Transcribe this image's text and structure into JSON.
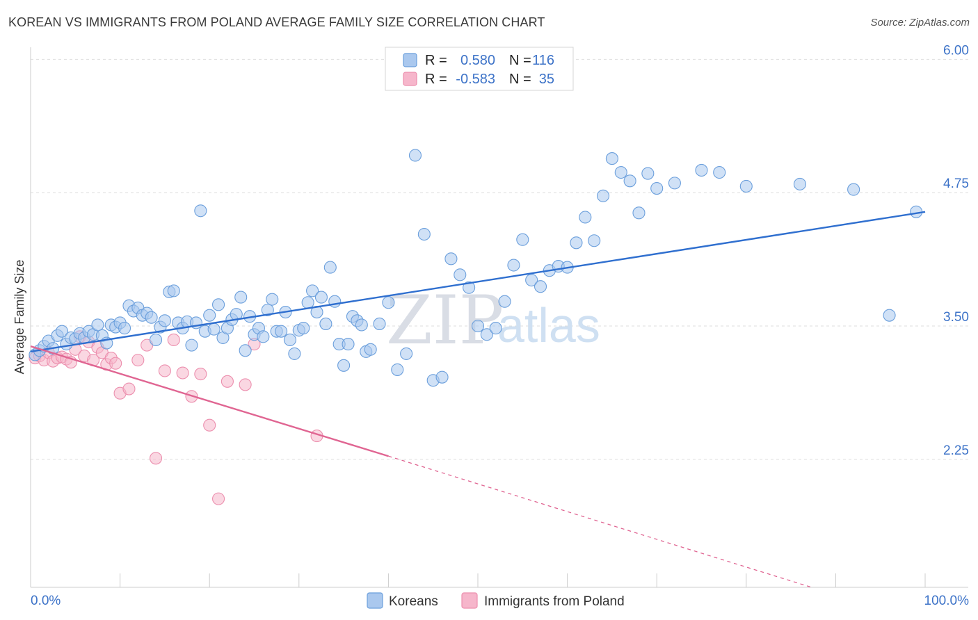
{
  "title": "KOREAN VS IMMIGRANTS FROM POLAND AVERAGE FAMILY SIZE CORRELATION CHART",
  "source": "Source: ZipAtlas.com",
  "watermark": {
    "zip": "ZIP",
    "atlas": "atlas"
  },
  "legend": {
    "rows": [
      {
        "r_label": "R =",
        "r_value": "0.580",
        "n_label": "N =",
        "n_value": "116"
      },
      {
        "r_label": "R =",
        "r_value": "-0.583",
        "n_label": "N =",
        "n_value": "35"
      }
    ]
  },
  "bottom_legend": [
    {
      "label": "Koreans"
    },
    {
      "label": "Immigrants from Poland"
    }
  ],
  "colors": {
    "koreans_fill": "#aac8ee",
    "koreans_stroke": "#6b9fdc",
    "koreans_line": "#2f6fcf",
    "poland_fill": "#f6b6cb",
    "poland_stroke": "#ec8fae",
    "poland_line": "#e06592",
    "grid": "#dedede",
    "axis_text": "#3d73c8"
  },
  "chart_data": {
    "type": "scatter",
    "title": "KOREAN VS IMMIGRANTS FROM POLAND AVERAGE FAMILY SIZE CORRELATION CHART",
    "xlabel": "",
    "ylabel": "Average Family Size",
    "xlim": [
      0,
      100
    ],
    "ylim": [
      1.05,
      6.1
    ],
    "x_tick_labels": [
      "0.0%",
      "100.0%"
    ],
    "y_ticks": [
      2.25,
      3.5,
      4.75,
      6.0
    ],
    "y_tick_labels": [
      "2.25",
      "3.50",
      "4.75",
      "6.00"
    ],
    "grid": true,
    "legend_position": "top-center",
    "series": [
      {
        "name": "Koreans",
        "points": [
          [
            0.5,
            3.23
          ],
          [
            1.0,
            3.27
          ],
          [
            1.5,
            3.31
          ],
          [
            2.0,
            3.36
          ],
          [
            2.5,
            3.29
          ],
          [
            3.0,
            3.41
          ],
          [
            3.5,
            3.45
          ],
          [
            4.0,
            3.33
          ],
          [
            4.5,
            3.39
          ],
          [
            5.0,
            3.38
          ],
          [
            5.5,
            3.43
          ],
          [
            6.0,
            3.39
          ],
          [
            6.5,
            3.45
          ],
          [
            7.0,
            3.42
          ],
          [
            7.5,
            3.51
          ],
          [
            8.0,
            3.41
          ],
          [
            8.5,
            3.34
          ],
          [
            9.0,
            3.51
          ],
          [
            9.5,
            3.49
          ],
          [
            10.0,
            3.53
          ],
          [
            10.5,
            3.48
          ],
          [
            11.0,
            3.69
          ],
          [
            11.5,
            3.64
          ],
          [
            12.0,
            3.67
          ],
          [
            12.5,
            3.6
          ],
          [
            13.0,
            3.62
          ],
          [
            13.5,
            3.58
          ],
          [
            14.0,
            3.37
          ],
          [
            14.5,
            3.49
          ],
          [
            15.0,
            3.55
          ],
          [
            15.5,
            3.82
          ],
          [
            16.0,
            3.83
          ],
          [
            16.5,
            3.53
          ],
          [
            17.0,
            3.48
          ],
          [
            17.5,
            3.54
          ],
          [
            18.0,
            3.32
          ],
          [
            18.5,
            3.53
          ],
          [
            19.0,
            4.58
          ],
          [
            19.5,
            3.45
          ],
          [
            20.0,
            3.6
          ],
          [
            20.5,
            3.47
          ],
          [
            21.0,
            3.7
          ],
          [
            21.5,
            3.39
          ],
          [
            22.0,
            3.48
          ],
          [
            22.5,
            3.56
          ],
          [
            23.0,
            3.61
          ],
          [
            23.5,
            3.77
          ],
          [
            24.0,
            3.27
          ],
          [
            24.5,
            3.59
          ],
          [
            25.0,
            3.42
          ],
          [
            25.5,
            3.48
          ],
          [
            26.0,
            3.4
          ],
          [
            26.5,
            3.65
          ],
          [
            27.0,
            3.75
          ],
          [
            27.5,
            3.45
          ],
          [
            28.0,
            3.45
          ],
          [
            28.5,
            3.63
          ],
          [
            29.0,
            3.37
          ],
          [
            29.5,
            3.24
          ],
          [
            30.0,
            3.46
          ],
          [
            30.5,
            3.48
          ],
          [
            31.0,
            3.72
          ],
          [
            31.5,
            3.83
          ],
          [
            32.0,
            3.63
          ],
          [
            32.5,
            3.77
          ],
          [
            33.0,
            3.52
          ],
          [
            33.5,
            4.05
          ],
          [
            34.0,
            3.73
          ],
          [
            34.5,
            3.33
          ],
          [
            35.0,
            3.13
          ],
          [
            35.5,
            3.33
          ],
          [
            36.0,
            3.59
          ],
          [
            36.5,
            3.55
          ],
          [
            37.0,
            3.51
          ],
          [
            37.5,
            3.26
          ],
          [
            38.0,
            3.28
          ],
          [
            39.0,
            3.52
          ],
          [
            40.0,
            3.72
          ],
          [
            41.0,
            3.09
          ],
          [
            42.0,
            3.24
          ],
          [
            43.0,
            5.1
          ],
          [
            44.0,
            4.36
          ],
          [
            45.0,
            2.99
          ],
          [
            46.0,
            3.02
          ],
          [
            47.0,
            4.13
          ],
          [
            48.0,
            3.98
          ],
          [
            49.0,
            3.86
          ],
          [
            50.0,
            3.5
          ],
          [
            51.0,
            3.42
          ],
          [
            52.0,
            3.48
          ],
          [
            53.0,
            3.73
          ],
          [
            54.0,
            4.07
          ],
          [
            55.0,
            4.31
          ],
          [
            56.0,
            3.93
          ],
          [
            57.0,
            3.87
          ],
          [
            58.0,
            4.02
          ],
          [
            59.0,
            4.06
          ],
          [
            60.0,
            4.05
          ],
          [
            61.0,
            4.28
          ],
          [
            62.0,
            4.52
          ],
          [
            63.0,
            4.3
          ],
          [
            64.0,
            4.72
          ],
          [
            65.0,
            5.07
          ],
          [
            66.0,
            4.94
          ],
          [
            67.0,
            4.86
          ],
          [
            68.0,
            4.56
          ],
          [
            69.0,
            4.93
          ],
          [
            70.0,
            4.79
          ],
          [
            72.0,
            4.84
          ],
          [
            75.0,
            4.96
          ],
          [
            77.0,
            4.94
          ],
          [
            80.0,
            4.81
          ],
          [
            86.0,
            4.83
          ],
          [
            92.0,
            4.78
          ],
          [
            96.0,
            3.6
          ],
          [
            99.0,
            4.57
          ]
        ]
      },
      {
        "name": "Immigrants from Poland",
        "points": [
          [
            0.5,
            3.2
          ],
          [
            1.0,
            3.22
          ],
          [
            1.5,
            3.18
          ],
          [
            2.0,
            3.25
          ],
          [
            2.5,
            3.17
          ],
          [
            3.0,
            3.2
          ],
          [
            3.5,
            3.21
          ],
          [
            4.0,
            3.19
          ],
          [
            4.5,
            3.16
          ],
          [
            5.0,
            3.28
          ],
          [
            5.5,
            3.4
          ],
          [
            6.0,
            3.22
          ],
          [
            6.5,
            3.35
          ],
          [
            7.0,
            3.18
          ],
          [
            7.5,
            3.3
          ],
          [
            8.0,
            3.25
          ],
          [
            8.5,
            3.14
          ],
          [
            9.0,
            3.2
          ],
          [
            9.5,
            3.15
          ],
          [
            10.0,
            2.87
          ],
          [
            11.0,
            2.91
          ],
          [
            12.0,
            3.18
          ],
          [
            13.0,
            3.32
          ],
          [
            14.0,
            2.26
          ],
          [
            15.0,
            3.08
          ],
          [
            16.0,
            3.37
          ],
          [
            17.0,
            3.06
          ],
          [
            18.0,
            2.84
          ],
          [
            19.0,
            3.05
          ],
          [
            20.0,
            2.57
          ],
          [
            21.0,
            1.88
          ],
          [
            22.0,
            2.98
          ],
          [
            24.0,
            2.95
          ],
          [
            25.0,
            3.33
          ],
          [
            32.0,
            2.47
          ]
        ]
      }
    ],
    "trendlines": [
      {
        "series": "Koreans",
        "x": [
          0,
          100
        ],
        "y": [
          3.26,
          4.57
        ]
      },
      {
        "series": "Immigrants from Poland",
        "x": [
          0,
          40
        ],
        "y": [
          3.31,
          2.28
        ],
        "dashed_extension_to": [
          100,
          0.72
        ]
      }
    ]
  }
}
